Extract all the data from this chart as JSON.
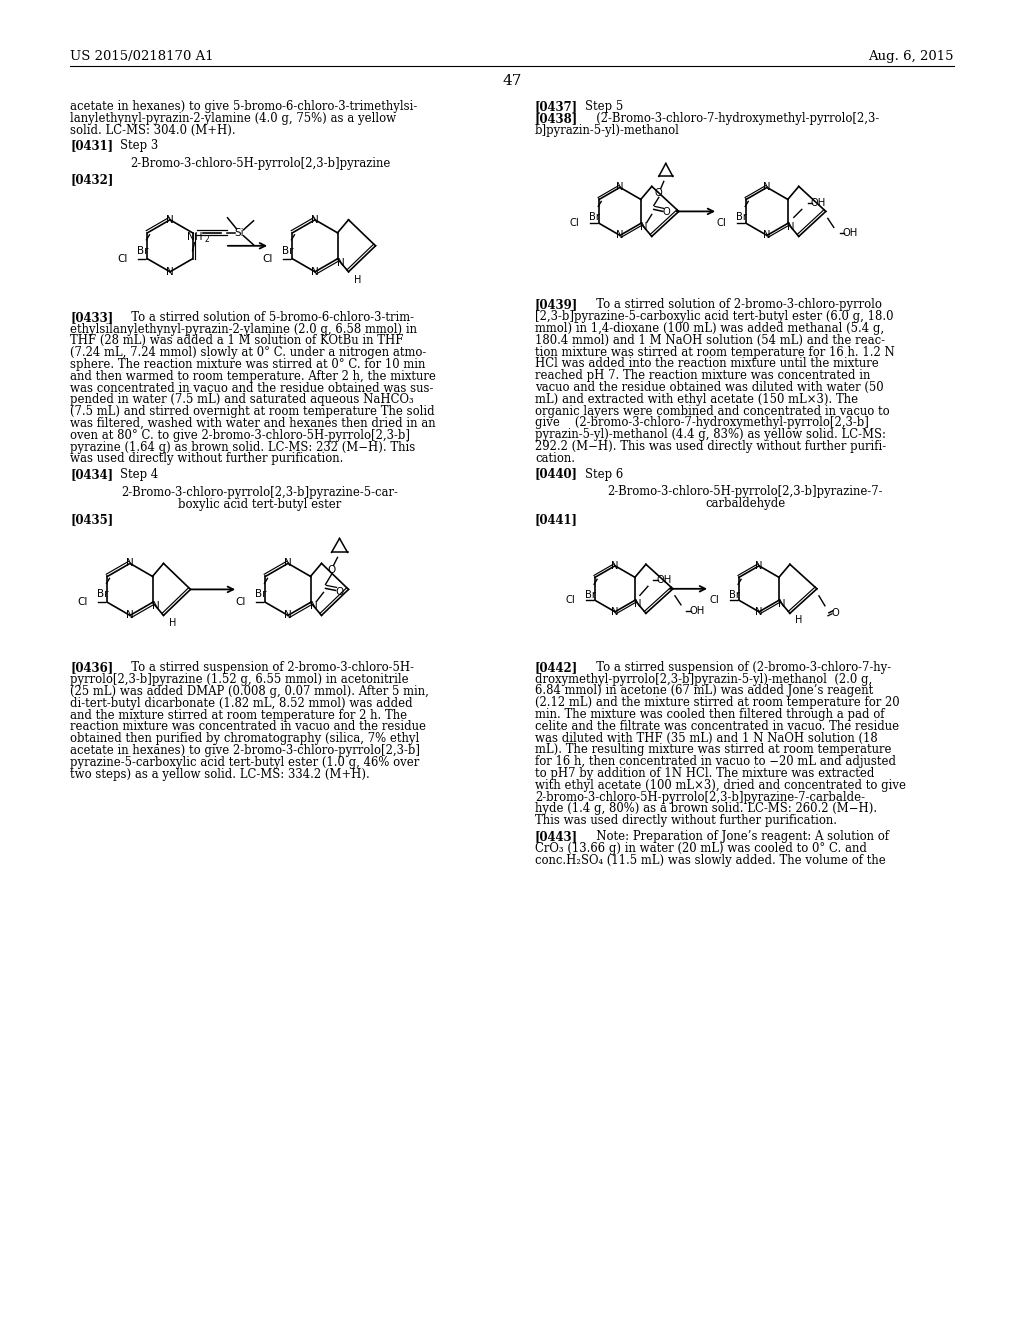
{
  "bg": "#ffffff",
  "header_left": "US 2015/0218170 A1",
  "header_right": "Aug. 6, 2015",
  "page_num": "47"
}
